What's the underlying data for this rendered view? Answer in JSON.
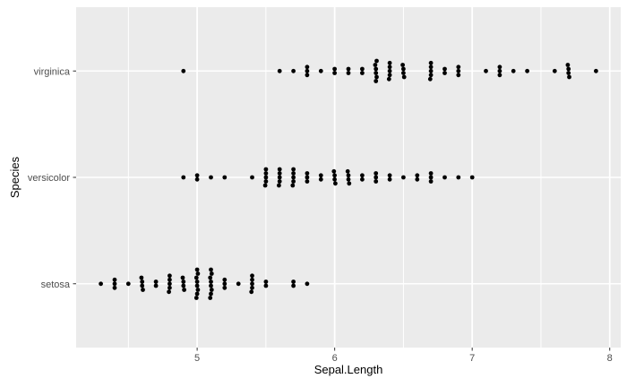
{
  "chart_data": {
    "type": "scatter",
    "title": "",
    "xlabel": "Sepal.Length",
    "ylabel": "Species",
    "categories": [
      "setosa",
      "versicolor",
      "virginica"
    ],
    "series": [
      {
        "name": "setosa",
        "values": [
          5.1,
          4.9,
          4.7,
          4.6,
          5.0,
          5.4,
          4.6,
          5.0,
          4.4,
          4.9,
          5.4,
          4.8,
          4.8,
          4.3,
          5.8,
          5.7,
          5.4,
          5.1,
          5.7,
          5.1,
          5.4,
          5.1,
          4.6,
          5.1,
          4.8,
          5.0,
          5.0,
          5.2,
          5.2,
          4.7,
          4.8,
          5.4,
          5.2,
          5.5,
          4.9,
          5.0,
          5.5,
          4.9,
          4.4,
          5.1,
          5.0,
          4.5,
          4.4,
          5.0,
          5.1,
          4.8,
          5.1,
          4.6,
          5.3,
          5.0
        ]
      },
      {
        "name": "versicolor",
        "values": [
          7.0,
          6.4,
          6.9,
          5.5,
          6.5,
          5.7,
          6.3,
          4.9,
          6.6,
          5.2,
          5.0,
          5.9,
          6.0,
          6.1,
          5.6,
          6.7,
          5.6,
          5.8,
          6.2,
          5.6,
          5.9,
          6.1,
          6.3,
          6.1,
          6.4,
          6.6,
          6.8,
          6.7,
          6.0,
          5.7,
          5.5,
          5.5,
          5.8,
          6.0,
          5.4,
          6.0,
          6.7,
          6.3,
          5.6,
          5.5,
          5.5,
          6.1,
          5.8,
          5.0,
          5.6,
          5.7,
          5.7,
          6.2,
          5.1,
          5.7
        ]
      },
      {
        "name": "virginica",
        "values": [
          6.3,
          5.8,
          7.1,
          6.3,
          6.5,
          7.6,
          4.9,
          7.3,
          6.7,
          7.2,
          6.5,
          6.4,
          6.8,
          5.7,
          5.8,
          6.4,
          6.5,
          7.7,
          7.7,
          6.0,
          6.9,
          5.6,
          7.7,
          6.3,
          6.7,
          7.2,
          6.2,
          6.1,
          6.4,
          7.2,
          7.4,
          7.9,
          6.4,
          6.3,
          6.1,
          7.7,
          6.3,
          6.4,
          6.0,
          6.9,
          6.7,
          6.9,
          5.8,
          6.8,
          6.7,
          6.7,
          6.3,
          6.5,
          6.2,
          5.9
        ]
      }
    ],
    "x_major_ticks": [
      5,
      6,
      7,
      8
    ],
    "x_minor_ticks": [
      4.5,
      5.5,
      6.5,
      7.5
    ],
    "xlim": [
      4.12,
      8.08
    ],
    "jitter": "vertical-stack",
    "grid": "on",
    "legend": "none",
    "colors": {
      "figure_background": "#ffffff",
      "panel_background": "#ebebeb",
      "grid_major": "#ffffff",
      "grid_minor": "#ffffff",
      "point": "#000000",
      "axis_text": "#4d4d4d",
      "axis_title": "#000000",
      "tick_mark": "#333333"
    }
  }
}
